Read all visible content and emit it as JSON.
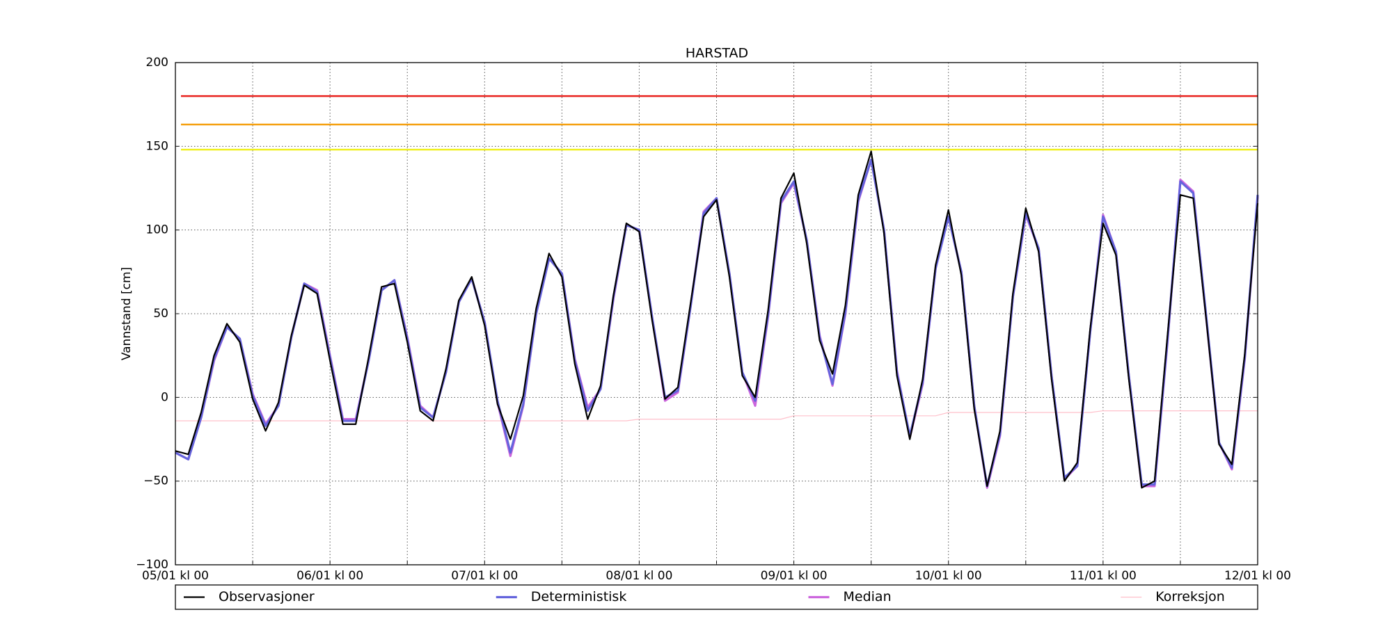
{
  "chart_data": {
    "type": "line",
    "title": "HARSTAD",
    "ylabel": "Vannstand [cm]",
    "xlim": [
      0,
      168
    ],
    "ylim": [
      -100,
      200
    ],
    "yticks": [
      {
        "value": -100,
        "label": "−100"
      },
      {
        "value": -50,
        "label": "−50"
      },
      0,
      50,
      100,
      150,
      200
    ],
    "xticks": [
      {
        "value": 0,
        "label": "05/01 kl 00"
      },
      {
        "value": 24,
        "label": "06/01 kl 00"
      },
      {
        "value": 48,
        "label": "07/01 kl 00"
      },
      {
        "value": 72,
        "label": "08/01 kl 00"
      },
      {
        "value": 96,
        "label": "09/01 kl 00"
      },
      {
        "value": 120,
        "label": "10/01 kl 00"
      },
      {
        "value": 144,
        "label": "11/01 kl 00"
      },
      {
        "value": 168,
        "label": "12/01 kl 00"
      }
    ],
    "xminorticks": [
      12,
      36,
      60,
      84,
      108,
      132,
      156
    ],
    "grid": true,
    "hlines": [
      {
        "value": 180,
        "color": "#e8201c"
      },
      {
        "value": 163,
        "color": "#f5a010"
      },
      {
        "value": 148,
        "color": "#f0f020"
      }
    ],
    "x": [
      0,
      2,
      4,
      6,
      8,
      10,
      12,
      14,
      16,
      18,
      20,
      22,
      24,
      26,
      28,
      30,
      32,
      34,
      36,
      38,
      40,
      42,
      44,
      46,
      48,
      50,
      52,
      54,
      56,
      58,
      60,
      62,
      64,
      66,
      68,
      70,
      72,
      74,
      76,
      78,
      80,
      82,
      84,
      86,
      88,
      90,
      92,
      94,
      96,
      98,
      100,
      102,
      104,
      106,
      108,
      110,
      112,
      114,
      116,
      118,
      120,
      122,
      124,
      126,
      128,
      130,
      132,
      134,
      136,
      138,
      140,
      142,
      144,
      146,
      148,
      150,
      152,
      154,
      156,
      158,
      160,
      162,
      164,
      166,
      168
    ],
    "series": [
      {
        "name": "Observasjoner",
        "color": "#000000",
        "values": [
          -32,
          -34,
          -9,
          25,
          44,
          33,
          -1,
          -20,
          -3,
          37,
          67,
          62,
          22,
          -16,
          -16,
          24,
          66,
          68,
          33,
          -8,
          -14,
          17,
          58,
          72,
          43,
          -4,
          -25,
          1,
          53,
          86,
          72,
          20,
          -13,
          7,
          61,
          104,
          99,
          46,
          -1,
          6,
          57,
          108,
          118,
          72,
          13,
          0,
          52,
          119,
          134,
          92,
          34,
          14,
          55,
          121,
          147,
          98,
          13,
          -25,
          11,
          79,
          112,
          73,
          -7,
          -53,
          -20,
          62,
          113,
          87,
          11,
          -50,
          -39,
          41,
          104,
          85,
          11,
          -54,
          -50,
          37,
          121,
          119,
          47,
          -28,
          -40,
          26,
          116
        ]
      },
      {
        "name": "Deterministisk",
        "color": "#6464dc",
        "values": [
          -33,
          -37,
          -12,
          23,
          42,
          35,
          1,
          -17,
          -5,
          36,
          68,
          63,
          24,
          -14,
          -14,
          22,
          64,
          70,
          35,
          -6,
          -12,
          15,
          57,
          71,
          45,
          -2,
          -33,
          -4,
          50,
          83,
          74,
          22,
          -8,
          5,
          60,
          103,
          100,
          48,
          0,
          4,
          55,
          110,
          119,
          74,
          15,
          -2,
          49,
          117,
          129,
          94,
          36,
          8,
          51,
          118,
          142,
          100,
          15,
          -23,
          9,
          77,
          108,
          75,
          -5,
          -53,
          -22,
          60,
          110,
          89,
          13,
          -48,
          -41,
          39,
          108,
          87,
          13,
          -52,
          -52,
          34,
          129,
          122,
          49,
          -27,
          -42,
          24,
          121
        ]
      },
      {
        "name": "Median",
        "color": "#cc66dd",
        "values": [
          -33,
          -37,
          -12,
          22,
          42,
          35,
          2,
          -16,
          -5,
          36,
          68,
          64,
          25,
          -13,
          -13,
          22,
          64,
          70,
          36,
          -5,
          -12,
          15,
          57,
          71,
          45,
          -3,
          -35,
          -5,
          50,
          83,
          74,
          23,
          -6,
          5,
          59,
          103,
          100,
          48,
          -2,
          3,
          55,
          111,
          119,
          74,
          15,
          -5,
          48,
          116,
          128,
          94,
          37,
          7,
          50,
          117,
          142,
          100,
          16,
          -24,
          8,
          77,
          108,
          75,
          -5,
          -54,
          -23,
          60,
          109,
          89,
          13,
          -49,
          -41,
          39,
          109,
          87,
          13,
          -53,
          -53,
          33,
          130,
          123,
          48,
          -27,
          -43,
          23,
          120
        ]
      },
      {
        "name": "Korreksjon",
        "color": "#ffc0cb",
        "values": [
          -14,
          -14,
          -14,
          -14,
          -14,
          -14,
          -14,
          -14,
          -14,
          -14,
          -14,
          -14,
          -14,
          -14,
          -14,
          -14,
          -14,
          -14,
          -14,
          -14,
          -14,
          -14,
          -14,
          -14,
          -14,
          -14,
          -14,
          -14,
          -14,
          -14,
          -14,
          -14,
          -14,
          -14,
          -14,
          -14,
          -13,
          -13,
          -13,
          -13,
          -13,
          -13,
          -13,
          -13,
          -13,
          -13,
          -13,
          -13,
          -11,
          -11,
          -11,
          -11,
          -11,
          -11,
          -11,
          -11,
          -11,
          -11,
          -11,
          -11,
          -9,
          -9,
          -9,
          -9,
          -9,
          -9,
          -9,
          -9,
          -9,
          -9,
          -9,
          -9,
          -8,
          -8,
          -8,
          -8,
          -8,
          -8,
          -8,
          -8,
          -8,
          -8,
          -8,
          -8,
          -8
        ]
      }
    ]
  }
}
